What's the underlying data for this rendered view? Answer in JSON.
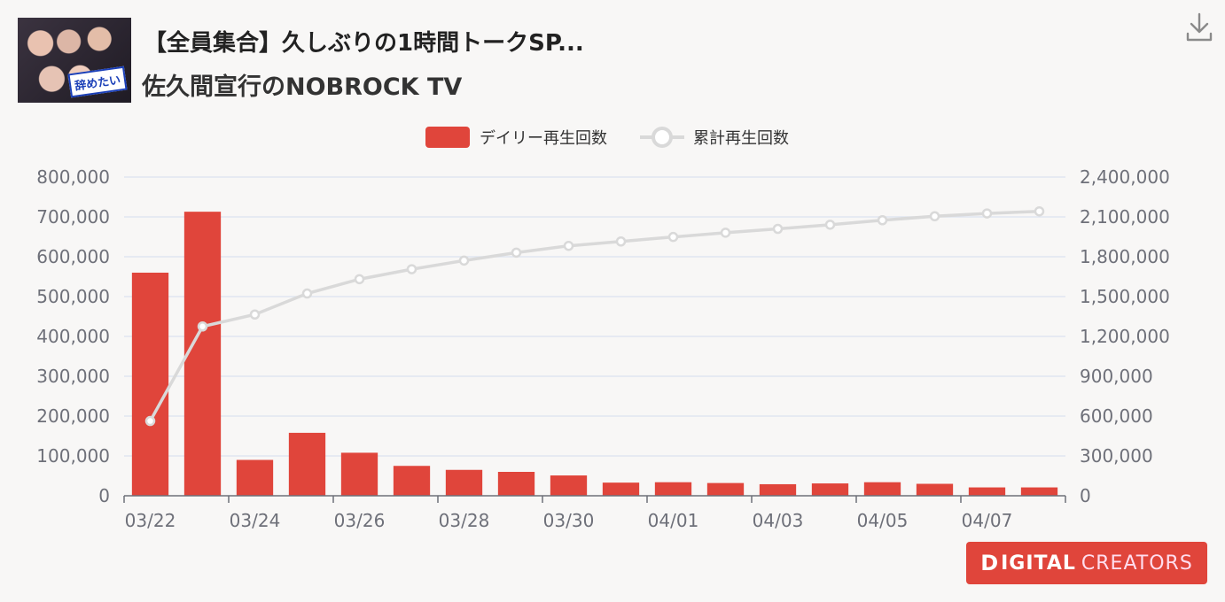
{
  "header": {
    "title": "【全員集合】久しぶりの1時間トークSP...",
    "channel": "佐久間宣行のNOBROCK TV",
    "thumbnail_text": "辞めたい"
  },
  "logo": {
    "word1": "IGITAL",
    "word2": "CREATORS",
    "mark": "D"
  },
  "chart_data": {
    "type": "bar",
    "categories": [
      "03/22",
      "03/23",
      "03/24",
      "03/25",
      "03/26",
      "03/27",
      "03/28",
      "03/29",
      "03/30",
      "03/31",
      "04/01",
      "04/02",
      "04/03",
      "04/04",
      "04/05",
      "04/06",
      "04/07",
      "04/08"
    ],
    "x_tick_labels": [
      "03/22",
      "03/24",
      "03/26",
      "03/28",
      "03/30",
      "04/01",
      "04/03",
      "04/05",
      "04/07"
    ],
    "series": [
      {
        "name": "デイリー再生回数",
        "type": "bar",
        "axis": "left",
        "color": "#e0453b",
        "values": [
          560000,
          713000,
          90000,
          158000,
          108000,
          75000,
          65000,
          60000,
          51000,
          33000,
          34000,
          32000,
          29000,
          31000,
          34000,
          30000,
          21000,
          21000
        ]
      },
      {
        "name": "累計再生回数",
        "type": "line",
        "axis": "right",
        "color": "#d9d9d9",
        "values": [
          563000,
          1275000,
          1365000,
          1523000,
          1631000,
          1706000,
          1771000,
          1831000,
          1882000,
          1915000,
          1949000,
          1981000,
          2010000,
          2041000,
          2075000,
          2105000,
          2126000,
          2142000
        ]
      }
    ],
    "y_left": {
      "min": 0,
      "max": 800000,
      "ticks": [
        "0",
        "100,000",
        "200,000",
        "300,000",
        "400,000",
        "500,000",
        "600,000",
        "700,000",
        "800,000"
      ]
    },
    "y_right": {
      "min": 0,
      "max": 2400000,
      "ticks": [
        "0",
        "300,000",
        "600,000",
        "900,000",
        "1,200,000",
        "1,500,000",
        "1,800,000",
        "2,100,000",
        "2,400,000"
      ]
    },
    "legend_position": "top-center",
    "grid": true
  }
}
